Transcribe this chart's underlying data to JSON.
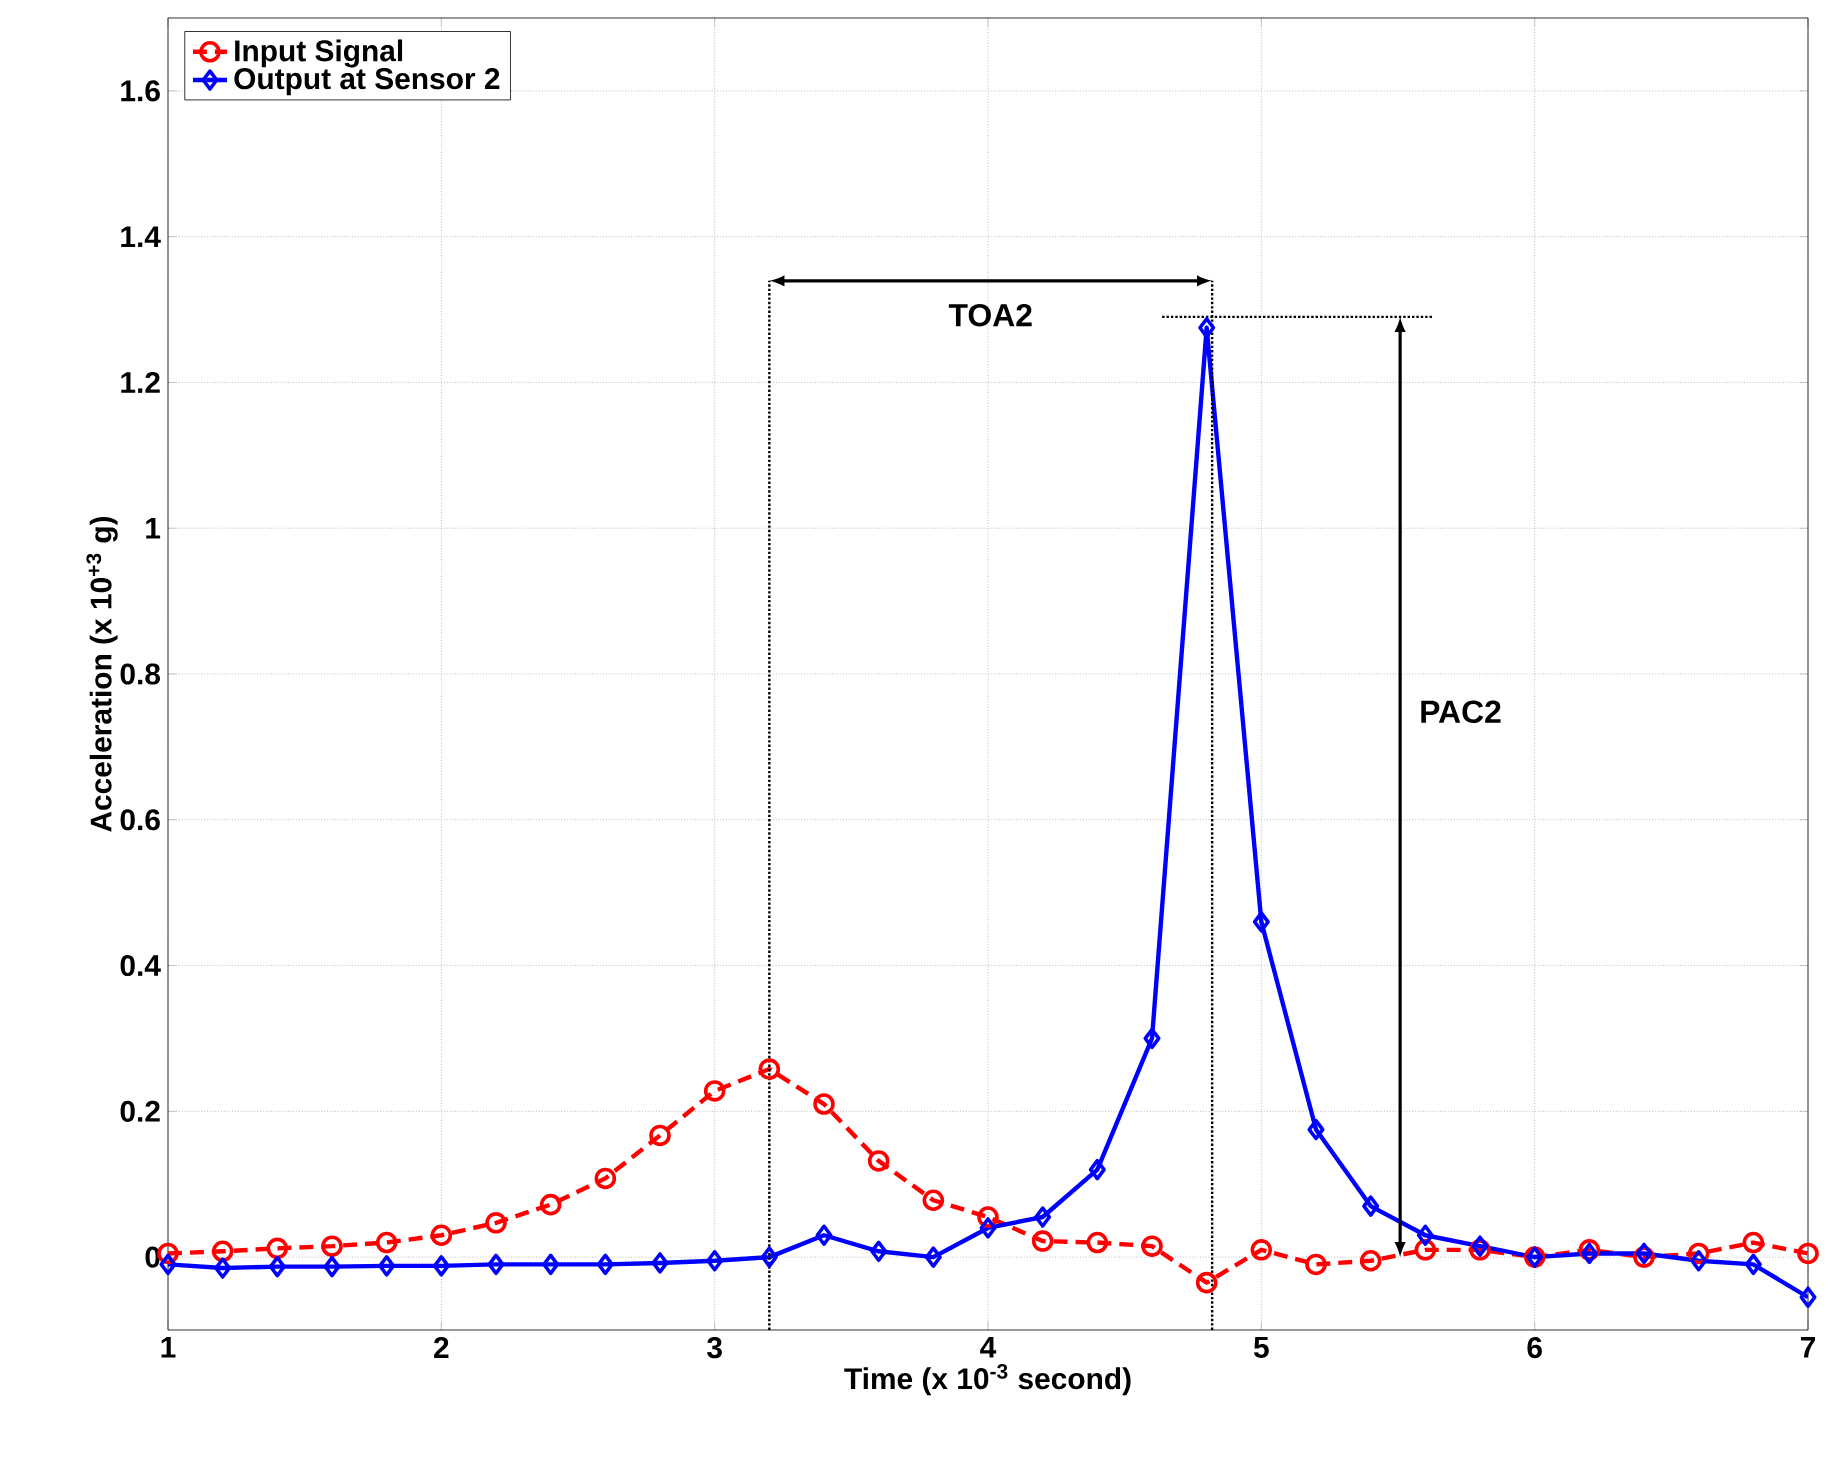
{
  "chart_data": {
    "type": "line",
    "xlabel": "Time (x 10$^{-3}$ second)",
    "ylabel": "Acceleration (x 10$^{+3}$ g)",
    "x": [
      1.0,
      1.2,
      1.4,
      1.6,
      1.8,
      2.0,
      2.2,
      2.4,
      2.6,
      2.8,
      3.0,
      3.2,
      3.4,
      3.6,
      3.8,
      4.0,
      4.2,
      4.4,
      4.6,
      4.8,
      5.0,
      5.2,
      5.4,
      5.6,
      5.8,
      6.0,
      6.2,
      6.4,
      6.6,
      6.8,
      7.0
    ],
    "series": [
      {
        "name": "Input Signal",
        "color": "#ff0000",
        "marker": "circle",
        "line_style": "dashed",
        "values": [
          0.005,
          0.008,
          0.012,
          0.015,
          0.02,
          0.03,
          0.047,
          0.072,
          0.108,
          0.167,
          0.228,
          0.258,
          0.21,
          0.132,
          0.078,
          0.055,
          0.022,
          0.02,
          0.015,
          -0.035,
          0.01,
          -0.01,
          -0.005,
          0.01,
          0.01,
          0.0,
          0.01,
          0.0,
          0.005,
          0.02,
          0.005
        ]
      },
      {
        "name": "Output at Sensor 2",
        "color": "#0000ff",
        "marker": "diamond",
        "line_style": "solid",
        "values": [
          -0.01,
          -0.015,
          -0.013,
          -0.013,
          -0.012,
          -0.012,
          -0.01,
          -0.01,
          -0.01,
          -0.008,
          -0.005,
          0.0,
          0.03,
          0.008,
          0.0,
          0.04,
          0.055,
          0.12,
          0.3,
          1.275,
          0.46,
          0.175,
          0.07,
          0.03,
          0.015,
          0.0,
          0.005,
          0.005,
          -0.005,
          -0.01,
          -0.055
        ]
      }
    ],
    "xlim": [
      1,
      7
    ],
    "ylim": [
      -0.1,
      1.7
    ],
    "xticks": [
      1,
      2,
      3,
      4,
      5,
      6,
      7
    ],
    "yticks": [
      0,
      0.2,
      0.4,
      0.6,
      0.8,
      1,
      1.2,
      1.4,
      1.6
    ],
    "grid": true,
    "legend": "top left",
    "ref_lines": [
      {
        "axis": "x",
        "value": 3.2,
        "label": null,
        "color": "#000000",
        "line_style": "dotted"
      },
      {
        "axis": "x",
        "value": 4.82,
        "label": null,
        "color": "#000000",
        "line_style": "dotted"
      },
      {
        "axis": "y",
        "value": 1.29,
        "label": null,
        "color": "#000000",
        "line_style": "dotted"
      }
    ],
    "annotations": [
      "TOA2",
      "PAC2"
    ]
  }
}
